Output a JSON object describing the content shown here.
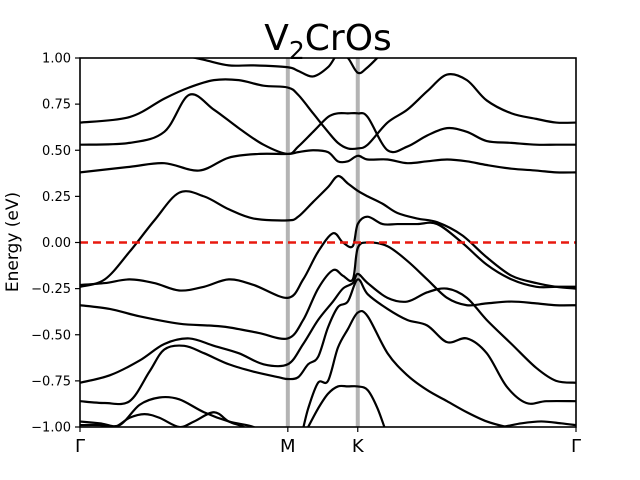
{
  "chart_data": {
    "type": "line",
    "title": "V",
    "title_sub": "2",
    "title_rest": "CrOs",
    "xlabel": "",
    "ylabel": "Energy (eV)",
    "ylim": [
      -1.0,
      1.0
    ],
    "xlim": [
      0,
      1
    ],
    "y_ticks": [
      {
        "value": -1.0,
        "label": "−1.00"
      },
      {
        "value": -0.75,
        "label": "−0.75"
      },
      {
        "value": -0.5,
        "label": "−0.50"
      },
      {
        "value": -0.25,
        "label": "−0.25"
      },
      {
        "value": 0.0,
        "label": "0.00"
      },
      {
        "value": 0.25,
        "label": "0.25"
      },
      {
        "value": 0.5,
        "label": "0.50"
      },
      {
        "value": 0.75,
        "label": "0.75"
      },
      {
        "value": 1.0,
        "label": "1.00"
      }
    ],
    "kpoints": [
      {
        "label": "Γ",
        "x": 0.0
      },
      {
        "label": "M",
        "x": 0.419
      },
      {
        "label": "K",
        "x": 0.56
      },
      {
        "label": "Γ",
        "x": 1.0
      }
    ],
    "fermi_level": 0.0,
    "colors": {
      "bands": "#000000",
      "fermi": "#e8190f",
      "kline": "#b4b4b4"
    },
    "grid": false,
    "legend": "none",
    "series": [
      {
        "x": [
          0,
          0.1,
          0.17,
          0.22,
          0.27,
          0.32,
          0.37,
          0.419,
          0.44,
          0.47,
          0.5,
          0.52,
          0.54,
          0.56,
          0.58,
          0.62,
          0.66,
          0.7,
          0.74,
          0.78,
          0.82,
          0.87,
          0.92,
          0.96,
          1.0
        ],
        "y": [
          0.65,
          0.68,
          0.78,
          0.84,
          0.88,
          0.88,
          0.85,
          0.84,
          0.8,
          0.7,
          0.6,
          0.54,
          0.51,
          0.51,
          0.53,
          0.65,
          0.72,
          0.82,
          0.91,
          0.88,
          0.77,
          0.7,
          0.67,
          0.65,
          0.65
        ]
      },
      {
        "x": [
          0,
          0.1,
          0.17,
          0.22,
          0.27,
          0.32,
          0.37,
          0.419,
          0.44,
          0.47,
          0.5,
          0.52,
          0.54,
          0.56,
          0.58,
          0.62,
          0.66,
          0.7,
          0.74,
          0.78,
          0.82,
          0.87,
          0.92,
          0.96,
          1.0
        ],
        "y": [
          0.53,
          0.54,
          0.6,
          0.8,
          0.72,
          0.62,
          0.53,
          0.48,
          0.52,
          0.6,
          0.68,
          0.7,
          0.7,
          0.7,
          0.68,
          0.5,
          0.52,
          0.58,
          0.62,
          0.6,
          0.55,
          0.54,
          0.53,
          0.53,
          0.53
        ]
      },
      {
        "x": [
          0,
          0.1,
          0.17,
          0.24,
          0.3,
          0.36,
          0.419,
          0.44,
          0.47,
          0.5,
          0.52,
          0.54,
          0.56,
          0.58,
          0.62,
          0.66,
          0.7,
          0.74,
          0.78,
          0.82,
          0.87,
          0.92,
          0.96,
          1.0
        ],
        "y": [
          0.38,
          0.41,
          0.43,
          0.39,
          0.46,
          0.48,
          0.48,
          0.49,
          0.5,
          0.49,
          0.44,
          0.44,
          0.47,
          0.45,
          0.45,
          0.43,
          0.44,
          0.45,
          0.44,
          0.42,
          0.4,
          0.39,
          0.38,
          0.38
        ]
      },
      {
        "x": [
          0,
          0.05,
          0.1,
          0.15,
          0.2,
          0.25,
          0.3,
          0.35,
          0.419,
          0.44,
          0.47,
          0.5,
          0.52,
          0.54,
          0.56,
          0.58,
          0.61,
          0.64,
          0.68,
          0.72,
          0.77,
          0.82,
          0.87,
          0.92,
          0.96,
          1.0
        ],
        "y": [
          -0.24,
          -0.2,
          -0.05,
          0.12,
          0.27,
          0.25,
          0.18,
          0.13,
          0.12,
          0.14,
          0.22,
          0.3,
          0.36,
          0.32,
          0.28,
          0.25,
          0.21,
          0.16,
          0.13,
          0.11,
          0.04,
          -0.08,
          -0.18,
          -0.22,
          -0.24,
          -0.25
        ]
      },
      {
        "x": [
          0,
          0.05,
          0.1,
          0.15,
          0.2,
          0.25,
          0.3,
          0.35,
          0.419,
          0.45,
          0.48,
          0.51,
          0.53,
          0.55,
          0.56,
          0.58,
          0.61,
          0.64,
          0.68,
          0.72,
          0.77,
          0.82,
          0.87,
          0.92,
          0.96,
          1.0
        ],
        "y": [
          -0.23,
          -0.22,
          -0.2,
          -0.22,
          -0.26,
          -0.24,
          -0.2,
          -0.23,
          -0.3,
          -0.2,
          -0.05,
          0.05,
          0.0,
          -0.02,
          0.1,
          0.14,
          0.1,
          0.1,
          0.1,
          0.1,
          0.0,
          -0.12,
          -0.2,
          -0.24,
          -0.24,
          -0.24
        ]
      },
      {
        "x": [
          0,
          0.06,
          0.12,
          0.2,
          0.26,
          0.3,
          0.36,
          0.419,
          0.45,
          0.48,
          0.51,
          0.53,
          0.55,
          0.56,
          0.58,
          0.62,
          0.66,
          0.7,
          0.74,
          0.78,
          0.82,
          0.87,
          0.92,
          0.96,
          1.0
        ],
        "y": [
          -0.34,
          -0.36,
          -0.4,
          -0.44,
          -0.45,
          -0.46,
          -0.49,
          -0.52,
          -0.42,
          -0.25,
          -0.15,
          -0.18,
          -0.2,
          -0.03,
          0.0,
          -0.02,
          -0.1,
          -0.2,
          -0.3,
          -0.34,
          -0.33,
          -0.32,
          -0.33,
          -0.34,
          -0.34
        ]
      },
      {
        "x": [
          0,
          0.06,
          0.12,
          0.17,
          0.22,
          0.27,
          0.32,
          0.37,
          0.419,
          0.45,
          0.48,
          0.51,
          0.53,
          0.55,
          0.56,
          0.58,
          0.62,
          0.66,
          0.7,
          0.74,
          0.78,
          0.82,
          0.87,
          0.92,
          0.96,
          1.0
        ],
        "y": [
          -0.76,
          -0.72,
          -0.64,
          -0.55,
          -0.52,
          -0.56,
          -0.6,
          -0.66,
          -0.66,
          -0.55,
          -0.42,
          -0.32,
          -0.25,
          -0.22,
          -0.17,
          -0.22,
          -0.3,
          -0.32,
          -0.27,
          -0.25,
          -0.3,
          -0.42,
          -0.55,
          -0.68,
          -0.75,
          -0.76
        ]
      },
      {
        "x": [
          0,
          0.05,
          0.1,
          0.14,
          0.17,
          0.21,
          0.25,
          0.3,
          0.35,
          0.4,
          0.419,
          0.44,
          0.46,
          0.48,
          0.5,
          0.52,
          0.54,
          0.56,
          0.58,
          0.62,
          0.66,
          0.7,
          0.74,
          0.78,
          0.82,
          0.86,
          0.9,
          0.94,
          1.0
        ],
        "y": [
          -0.86,
          -0.87,
          -0.86,
          -0.7,
          -0.58,
          -0.56,
          -0.6,
          -0.66,
          -0.7,
          -0.73,
          -0.74,
          -0.73,
          -0.66,
          -0.62,
          -0.46,
          -0.35,
          -0.32,
          -0.2,
          -0.28,
          -0.36,
          -0.42,
          -0.45,
          -0.54,
          -0.52,
          -0.6,
          -0.78,
          -0.87,
          -0.86,
          -0.86
        ]
      },
      {
        "x": [
          0,
          0.04,
          0.08,
          0.12,
          0.16,
          0.2,
          0.25,
          0.3,
          0.35,
          0.38,
          0.4,
          0.419,
          0.44,
          0.46,
          0.48,
          0.5,
          0.52,
          0.54,
          0.56,
          0.58,
          0.62,
          0.66,
          0.7,
          0.74,
          0.78,
          0.82,
          0.86,
          0.9,
          0.94,
          1.0
        ],
        "y": [
          -0.97,
          -0.98,
          -0.99,
          -0.88,
          -0.84,
          -0.85,
          -0.92,
          -0.97,
          -1.0,
          -1.05,
          -1.1,
          -1.15,
          -1.1,
          -0.9,
          -0.76,
          -0.75,
          -0.57,
          -0.47,
          -0.38,
          -0.4,
          -0.6,
          -0.72,
          -0.8,
          -0.86,
          -0.92,
          -0.97,
          -1.0,
          -1.02,
          -1.02,
          -1.02
        ]
      },
      {
        "x": [
          0,
          0.04,
          0.07,
          0.1,
          0.13,
          0.16,
          0.2,
          0.23,
          0.27,
          0.3,
          0.33,
          0.36
        ],
        "y": [
          -0.99,
          -0.99,
          -1.0,
          -0.95,
          -0.93,
          -0.95,
          -1.0,
          -0.97,
          -0.92,
          -0.97,
          -1.0,
          -1.05
        ]
      },
      {
        "x": [
          0.44,
          0.46,
          0.48,
          0.5,
          0.52,
          0.54,
          0.56,
          0.58,
          0.6,
          0.62
        ],
        "y": [
          -1.1,
          -1.0,
          -0.9,
          -0.82,
          -0.78,
          -0.78,
          -0.78,
          -0.8,
          -0.9,
          -1.05
        ]
      },
      {
        "x": [
          0.77,
          0.81,
          0.85,
          0.89,
          0.93,
          0.97,
          1.0
        ],
        "y": [
          -1.01,
          -1.01,
          -1.0,
          -0.98,
          -0.97,
          -0.98,
          -0.99
        ]
      },
      {
        "x": [
          0.2,
          0.25,
          0.3,
          0.35,
          0.419,
          0.44,
          0.47,
          0.5,
          0.52,
          0.54,
          0.56,
          0.58,
          0.62,
          0.66,
          0.7,
          0.74
        ],
        "y": [
          1.02,
          0.99,
          0.96,
          0.96,
          0.95,
          0.93,
          0.9,
          0.95,
          1.02,
          1.0,
          0.92,
          0.95,
          1.05,
          1.1,
          1.05,
          1.02
        ]
      }
    ]
  }
}
